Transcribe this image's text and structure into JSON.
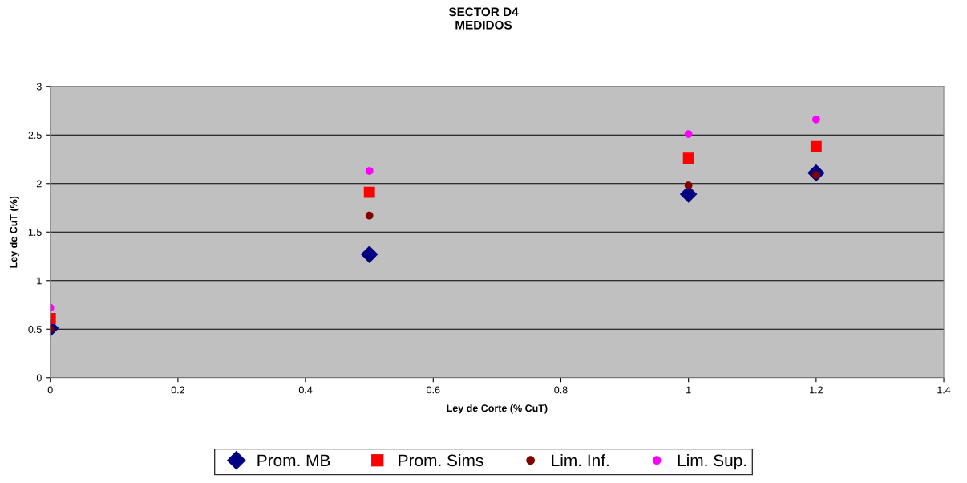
{
  "chart_data": {
    "type": "scatter",
    "title": "SECTOR D4\nMEDIDOS",
    "xlabel": "Ley de Corte (% CuT)",
    "ylabel": "Ley de CuT (%)",
    "x": [
      0,
      0.5,
      1,
      1.2
    ],
    "series": [
      {
        "name": "Prom. MB",
        "color": "#000080",
        "marker": "diamond",
        "values": [
          0.51,
          1.27,
          1.89,
          2.11
        ]
      },
      {
        "name": "Prom. Sims",
        "color": "#ff0000",
        "marker": "square",
        "values": [
          0.61,
          1.91,
          2.26,
          2.38
        ]
      },
      {
        "name": "Lim. Inf.",
        "color": "#800000",
        "marker": "circle",
        "values": [
          0.5,
          1.67,
          1.98,
          2.09
        ]
      },
      {
        "name": "Lim. Sup.",
        "color": "#ff00ff",
        "marker": "circle",
        "values": [
          0.72,
          2.13,
          2.51,
          2.66
        ]
      }
    ],
    "xlim": [
      0,
      1.4
    ],
    "xticks": [
      0,
      0.2,
      0.4,
      0.6,
      0.8,
      1,
      1.2,
      1.4
    ],
    "ylim": [
      0,
      3
    ],
    "yticks": [
      0,
      0.5,
      1,
      1.5,
      2,
      2.5,
      3
    ],
    "grid": "y",
    "legend": "bottom"
  }
}
